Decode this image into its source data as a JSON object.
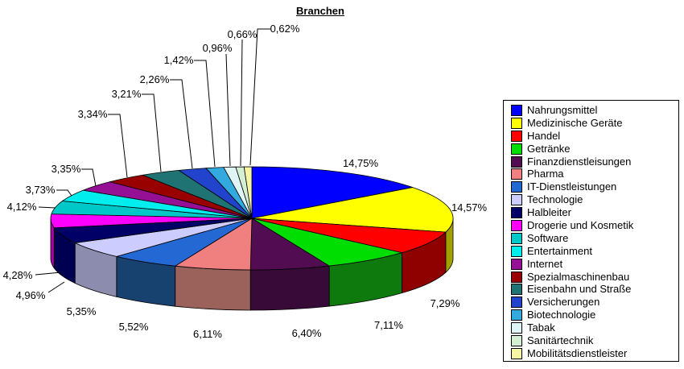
{
  "title": "Branchen",
  "chart_data": {
    "type": "pie",
    "title": "Branchen",
    "style": "3d-pie",
    "legend_position": "right",
    "value_format": "percent, German comma decimals",
    "total_percent": 100,
    "slices": [
      {
        "label": "Nahrungsmittel",
        "value": 14.75,
        "display": "14,75%",
        "color": "#0000FF",
        "side": "#0000A0"
      },
      {
        "label": "Medizinische Geräte",
        "value": 14.57,
        "display": "14,57%",
        "color": "#FFFF00",
        "side": "#A0A000"
      },
      {
        "label": "Handel",
        "value": 7.29,
        "display": "7,29%",
        "color": "#FF0000",
        "side": "#8F0000"
      },
      {
        "label": "Getränke",
        "value": 7.11,
        "display": "7,11%",
        "color": "#00DD00",
        "side": "#0E7A0E"
      },
      {
        "label": "Finanzdienstleisungen",
        "value": 6.4,
        "display": "6,40%",
        "color": "#520D52",
        "side": "#380A38"
      },
      {
        "label": "Pharma",
        "value": 6.11,
        "display": "6,11%",
        "color": "#F08080",
        "side": "#9A625A"
      },
      {
        "label": "IT-Dienstleistungen",
        "value": 5.52,
        "display": "5,52%",
        "color": "#2468D4",
        "side": "#17416E"
      },
      {
        "label": "Technologie",
        "value": 5.35,
        "display": "5,35%",
        "color": "#CCCCFF",
        "side": "#8C8CAE"
      },
      {
        "label": "Halbleiter",
        "value": 4.96,
        "display": "4,96%",
        "color": "#000066",
        "side": "#000052"
      },
      {
        "label": "Drogerie und Kosmetik",
        "value": 4.28,
        "display": "4,28%",
        "color": "#FF00FF",
        "side": "#AA00AA"
      },
      {
        "label": "Software",
        "value": 4.12,
        "display": "4,12%",
        "color": "#00C8C8",
        "side": "#008888"
      },
      {
        "label": "Entertainment",
        "value": 3.73,
        "display": "3,73%",
        "color": "#00EEEE",
        "side": "#00A0A0"
      },
      {
        "label": "Internet",
        "value": 3.35,
        "display": "3,35%",
        "color": "#951095",
        "side": "#6A0B6A"
      },
      {
        "label": "Spezialmaschinenbau",
        "value": 3.34,
        "display": "3,34%",
        "color": "#990000",
        "side": "#6E0000"
      },
      {
        "label": "Eisenbahn und Straße",
        "value": 3.21,
        "display": "3,21%",
        "color": "#1F7373",
        "side": "#155050"
      },
      {
        "label": "Versicherungen",
        "value": 2.26,
        "display": "2,26%",
        "color": "#2244CC",
        "side": "#182F8F"
      },
      {
        "label": "Biotechnologie",
        "value": 1.42,
        "display": "1,42%",
        "color": "#33AADD",
        "side": "#23769A"
      },
      {
        "label": "Tabak",
        "value": 0.96,
        "display": "0,96%",
        "color": "#DFF5F5",
        "side": "#9BABAB"
      },
      {
        "label": "Sanitärtechnik",
        "value": 0.66,
        "display": "0,66%",
        "color": "#D5EFD5",
        "side": "#94A794"
      },
      {
        "label": "Mobilitätsdienstleister",
        "value": 0.62,
        "display": "0,62%",
        "color": "#F5F5A5",
        "side": "#ABAB73"
      }
    ]
  }
}
